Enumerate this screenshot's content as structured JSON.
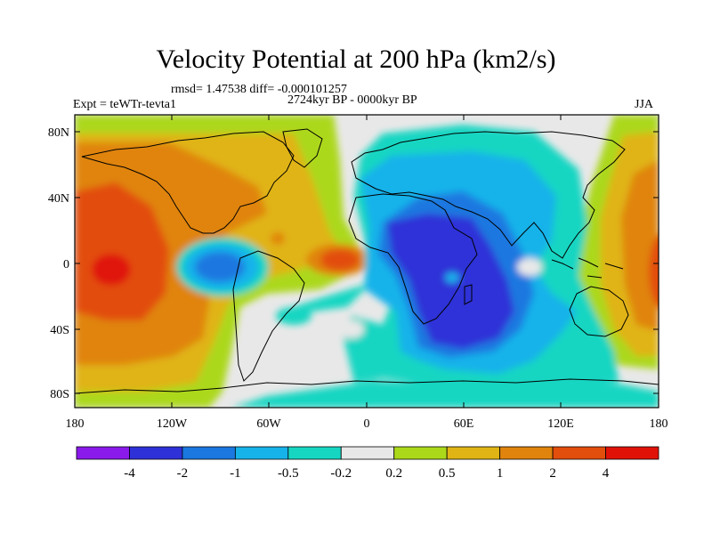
{
  "header": {
    "title": "Velocity Potential at 200 hPa (km2/s)",
    "stats": "rmsd= 1.47538 diff= -0.000101257",
    "experiment": "Expt = teWTr-tevta1",
    "period": "2724kyr BP - 0000kyr BP",
    "season": "JJA"
  },
  "map": {
    "lat_ticks": [
      "80N",
      "40N",
      "0",
      "40S",
      "80S"
    ],
    "lon_ticks": [
      "180",
      "120W",
      "60W",
      "0",
      "60E",
      "120E",
      "180"
    ]
  },
  "colorbar": {
    "labels": [
      "-4",
      "-2",
      "-1",
      "-0.5",
      "-0.2",
      "0.2",
      "0.5",
      "1",
      "2",
      "4"
    ],
    "colors": [
      "#8a1aeb",
      "#2f31d8",
      "#1a78e0",
      "#16b2ea",
      "#16d6c2",
      "#e8e8e8",
      "#acd81a",
      "#e0b414",
      "#e0840e",
      "#e24e0c",
      "#e01208"
    ]
  }
}
